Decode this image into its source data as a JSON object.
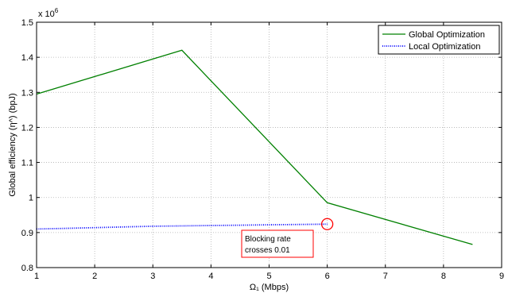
{
  "chart_data": {
    "type": "line",
    "title": "",
    "xlabel": "Ω₁ (Mbps)",
    "ylabel": "Global efficiency (η^) (bpJ)",
    "exponent_label": "x 10",
    "exponent_power": "6",
    "xlim": [
      1,
      9
    ],
    "ylim": [
      0.8,
      1.5
    ],
    "x_ticks": [
      1,
      2,
      3,
      4,
      5,
      6,
      7,
      8,
      9
    ],
    "x_tick_labels": [
      "1",
      "2",
      "3",
      "4",
      "5",
      "6",
      "7",
      "8",
      "9"
    ],
    "y_ticks": [
      0.8,
      0.9,
      1.0,
      1.1,
      1.2,
      1.3,
      1.4,
      1.5
    ],
    "y_tick_labels": [
      "0.8",
      "0.9",
      "1",
      "1.1",
      "1.2",
      "1.3",
      "1.4",
      "1.5"
    ],
    "grid": true,
    "legend_position": "top-right",
    "series": [
      {
        "name": "Global Optimization",
        "color": "#008000",
        "style": "solid",
        "x": [
          1,
          3.5,
          6,
          8.5
        ],
        "y": [
          1.295,
          1.42,
          0.985,
          0.866
        ]
      },
      {
        "name": "Local Optimization",
        "color": "#0000ff",
        "style": "dotted",
        "x": [
          1,
          1.5,
          2,
          2.5,
          3,
          3.5,
          4,
          4.5,
          5,
          5.5,
          6
        ],
        "y": [
          0.91,
          0.912,
          0.914,
          0.916,
          0.918,
          0.919,
          0.92,
          0.921,
          0.922,
          0.923,
          0.924
        ]
      }
    ],
    "annotation": {
      "lines": [
        "Blocking rate",
        "crosses 0.01"
      ],
      "marker_x": 6,
      "marker_y": 0.924,
      "color": "#ff0000"
    }
  }
}
